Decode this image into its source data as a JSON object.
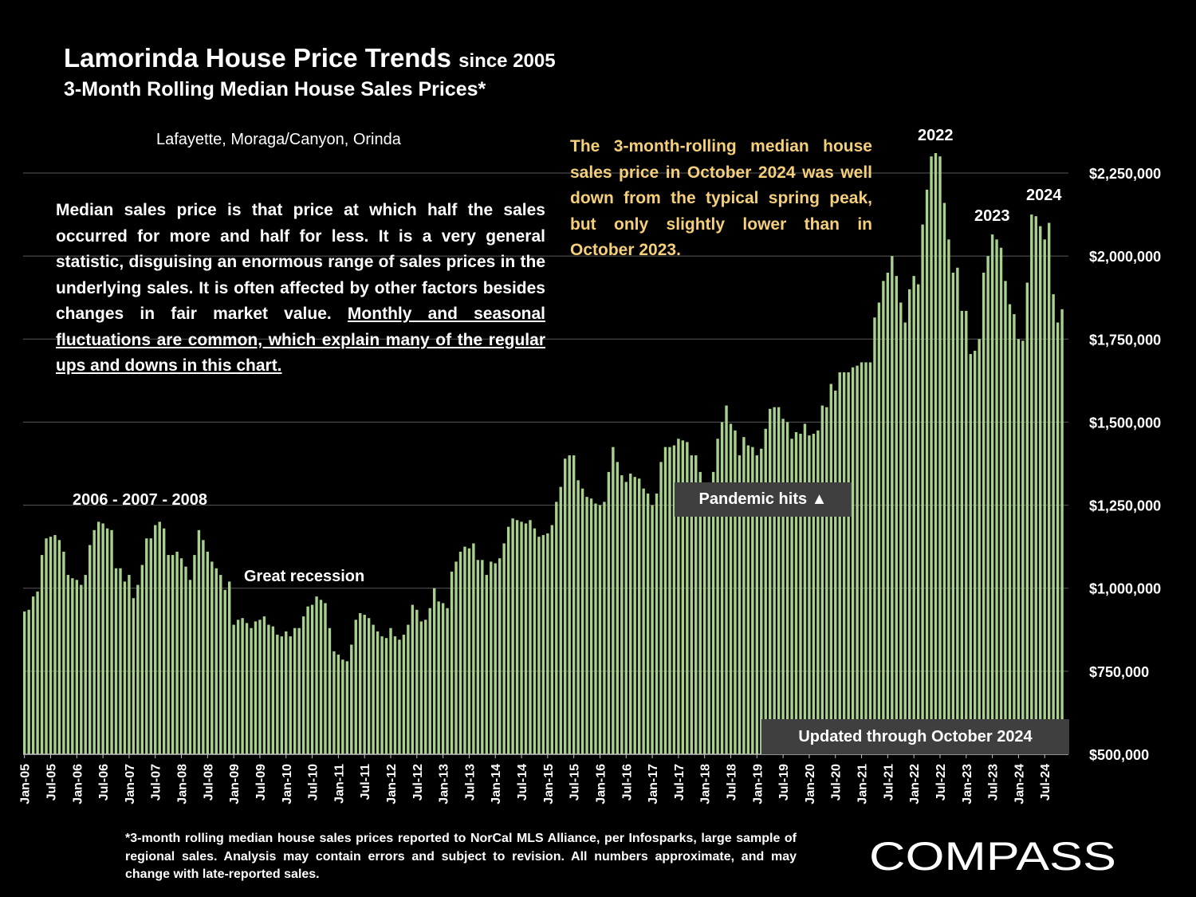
{
  "header": {
    "title": "Lamorinda House Price Trends",
    "title_suffix": "since 2005",
    "subtitle": "3-Month Rolling Median House Sales Prices*"
  },
  "region": "Lafayette, Moraga/Canyon, Orinda",
  "explanation": {
    "plain": "Median sales price is that price at which half the sales occurred for more and half for less. It is a very general statistic, disguising an enormous range of sales prices in the underlying sales. It is often affected by other factors besides changes in fair market value. ",
    "underlined": "Monthly and seasonal fluctuations are common, which explain many of the regular ups and downs in this chart."
  },
  "note": "The 3-month-rolling median house sales price in October 2024 was well down from the typical spring peak, but only slightly lower than in October 2023.",
  "footnote": "*3-month rolling median house sales prices reported to NorCal MLS Alliance, per Infosparks, large sample of regional sales. Analysis may contain errors and subject to revision. All numbers approximate, and may change with late-reported sales.",
  "brand": {
    "name": "COMPASS"
  },
  "colors": {
    "bar": "#a9d18e",
    "background": "#000000",
    "note": "#f5cf7a",
    "label_box": "#3f3f3f"
  },
  "annotations": {
    "y2006": "2006 - 2007 - 2008",
    "recession": "Great recession",
    "pandemic": "Pandemic hits ▲",
    "updated": "Updated through October 2024",
    "y2022": "2022",
    "y2023": "2023",
    "y2024": "2024"
  },
  "chart_data": {
    "type": "bar",
    "start": "Jan-05",
    "end": "Oct-24",
    "x_tick_labels": [
      "Jan-05",
      "Jul-05",
      "Jan-06",
      "Jul-06",
      "Jan-07",
      "Jul-07",
      "Jan-08",
      "Jul-08",
      "Jan-09",
      "Jul-09",
      "Jan-10",
      "Jul-10",
      "Jan-11",
      "Jul-11",
      "Jan-12",
      "Jul-12",
      "Jan-13",
      "Jul-13",
      "Jan-14",
      "Jul-14",
      "Jan-15",
      "Jul-15",
      "Jan-16",
      "Jul-16",
      "Jan-17",
      "Jul-17",
      "Jan-18",
      "Jul-18",
      "Jan-19",
      "Jul-19",
      "Jan-20",
      "Jul-20",
      "Jan-21",
      "Jul-21",
      "Jan-22",
      "Jul-22",
      "Jan-23",
      "Jul-23",
      "Jan-24",
      "Jul-24"
    ],
    "y_tick_labels": [
      "$500,000",
      "$750,000",
      "$1,000,000",
      "$1,250,000",
      "$1,500,000",
      "$1,750,000",
      "$2,000,000",
      "$2,250,000"
    ],
    "y_ticks": [
      500000,
      750000,
      1000000,
      1250000,
      1500000,
      1750000,
      2000000,
      2250000
    ],
    "ylim": [
      500000,
      2250000
    ],
    "ylabel_position": "right",
    "grid": true,
    "values": [
      930000,
      935000,
      975000,
      990000,
      1100000,
      1150000,
      1155000,
      1160000,
      1145000,
      1110000,
      1040000,
      1030000,
      1025000,
      1010000,
      1040000,
      1130000,
      1175000,
      1200000,
      1195000,
      1180000,
      1175000,
      1060000,
      1060000,
      1020000,
      1040000,
      970000,
      1010000,
      1070000,
      1150000,
      1150000,
      1190000,
      1200000,
      1180000,
      1100000,
      1100000,
      1110000,
      1090000,
      1065000,
      1025000,
      1100000,
      1175000,
      1145000,
      1110000,
      1080000,
      1060000,
      1040000,
      995000,
      1020000,
      890000,
      905000,
      910000,
      895000,
      880000,
      900000,
      905000,
      915000,
      890000,
      885000,
      860000,
      855000,
      870000,
      855000,
      880000,
      880000,
      915000,
      945000,
      950000,
      975000,
      965000,
      955000,
      880000,
      810000,
      800000,
      785000,
      780000,
      830000,
      905000,
      925000,
      920000,
      910000,
      890000,
      870000,
      855000,
      850000,
      880000,
      855000,
      845000,
      860000,
      890000,
      950000,
      935000,
      900000,
      905000,
      940000,
      1000000,
      960000,
      955000,
      940000,
      1050000,
      1080000,
      1110000,
      1125000,
      1120000,
      1135000,
      1085000,
      1085000,
      1040000,
      1080000,
      1075000,
      1090000,
      1135000,
      1185000,
      1210000,
      1205000,
      1200000,
      1195000,
      1205000,
      1180000,
      1155000,
      1160000,
      1165000,
      1190000,
      1260000,
      1305000,
      1390000,
      1400000,
      1400000,
      1325000,
      1300000,
      1275000,
      1270000,
      1255000,
      1250000,
      1260000,
      1350000,
      1425000,
      1380000,
      1340000,
      1320000,
      1345000,
      1335000,
      1330000,
      1300000,
      1285000,
      1250000,
      1285000,
      1380000,
      1425000,
      1425000,
      1430000,
      1450000,
      1445000,
      1440000,
      1400000,
      1400000,
      1350000,
      1300000,
      1295000,
      1350000,
      1450000,
      1500000,
      1550000,
      1495000,
      1475000,
      1400000,
      1455000,
      1430000,
      1425000,
      1400000,
      1420000,
      1480000,
      1540000,
      1545000,
      1545000,
      1510000,
      1500000,
      1450000,
      1470000,
      1465000,
      1495000,
      1460000,
      1465000,
      1475000,
      1550000,
      1545000,
      1615000,
      1595000,
      1650000,
      1650000,
      1650000,
      1665000,
      1670000,
      1680000,
      1680000,
      1680000,
      1815000,
      1860000,
      1925000,
      1950000,
      2000000,
      1940000,
      1860000,
      1800000,
      1900000,
      1940000,
      1915000,
      2095000,
      2200000,
      2300000,
      2310000,
      2300000,
      2160000,
      2050000,
      1950000,
      1965000,
      1835000,
      1835000,
      1705000,
      1715000,
      1750000,
      1950000,
      2000000,
      2065000,
      2050000,
      2025000,
      1925000,
      1855000,
      1825000,
      1750000,
      1745000,
      1920000,
      2125000,
      2120000,
      2090000,
      2050000,
      2100000,
      1885000,
      1800000,
      1840000
    ]
  }
}
